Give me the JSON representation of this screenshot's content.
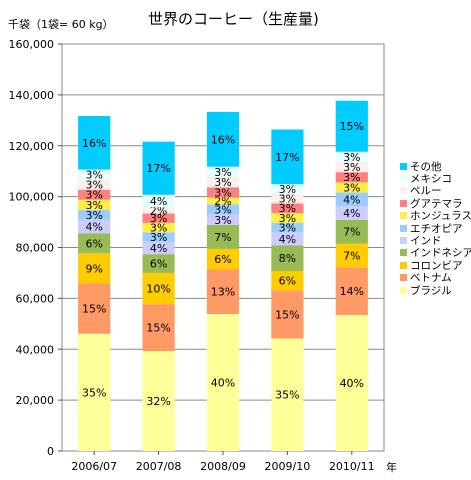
{
  "chart_data": {
    "type": "bar",
    "stacked": true,
    "title": "世界のコーヒー（生産量)",
    "unit_label": "千袋（1袋= 60 kg）",
    "x_unit": "年",
    "categories": [
      "2006/07",
      "2007/08",
      "2008/09",
      "2009/10",
      "2010/11"
    ],
    "totals": [
      131700,
      121600,
      133300,
      126400,
      137700
    ],
    "ylim": [
      0,
      160000
    ],
    "yticks": [
      0,
      20000,
      40000,
      60000,
      80000,
      100000,
      120000,
      140000,
      160000
    ],
    "ytick_labels": [
      "0",
      "20,000",
      "40,000",
      "60,000",
      "80,000",
      "100,000",
      "120,000",
      "140,000",
      "160,000"
    ],
    "grid": true,
    "legend_position": "right",
    "series": [
      {
        "name": "ブラジル",
        "color": "#ffff99",
        "percent": [
          35,
          32,
          40,
          35,
          40
        ],
        "labels": [
          "35%",
          "32%",
          "40%",
          "35%",
          "40%"
        ]
      },
      {
        "name": "ベトナム",
        "color": "#ff9966",
        "percent": [
          15,
          15,
          13,
          15,
          14
        ],
        "labels": [
          "15%",
          "15%",
          "13%",
          "15%",
          "14%"
        ]
      },
      {
        "name": "コロンビア",
        "color": "#ffcc00",
        "percent": [
          9,
          10,
          6,
          6,
          7
        ],
        "labels": [
          "9%",
          "10%",
          "6%",
          "6%",
          "7%"
        ]
      },
      {
        "name": "インドネシア",
        "color": "#99bb55",
        "percent": [
          6,
          6,
          7,
          8,
          7
        ],
        "labels": [
          "6%",
          "6%",
          "7%",
          "8%",
          "7%"
        ]
      },
      {
        "name": "インド",
        "color": "#ccccff",
        "percent": [
          4,
          4,
          3,
          4,
          4
        ],
        "labels": [
          "4%",
          "4%",
          "3%",
          "4%",
          "4%"
        ]
      },
      {
        "name": "エチオピア",
        "color": "#99ccff",
        "percent": [
          3,
          3,
          3,
          3,
          4
        ],
        "labels": [
          "3%",
          "3%",
          "3%",
          "3%",
          "4%"
        ]
      },
      {
        "name": "ホンジュラス",
        "color": "#ffee44",
        "percent": [
          3,
          3,
          2,
          3,
          3
        ],
        "labels": [
          "3%",
          "3%",
          "2%",
          "3%",
          "3%"
        ]
      },
      {
        "name": "グアテマラ",
        "color": "#ff8080",
        "percent": [
          3,
          3,
          3,
          3,
          3
        ],
        "labels": [
          "3%",
          "3%",
          "3%",
          "3%",
          "3%"
        ]
      },
      {
        "name": "ペルー",
        "color": "#ffeeee",
        "percent": [
          3,
          2,
          3,
          3,
          3
        ],
        "labels": [
          "3%",
          "2%",
          "3%",
          "3%",
          "3%"
        ]
      },
      {
        "name": "メキシコ",
        "color": "#e6ffff",
        "percent": [
          3,
          4,
          3,
          3,
          3
        ],
        "labels": [
          "3%",
          "4%",
          "3%",
          "3%",
          "3%"
        ]
      },
      {
        "name": "その他",
        "color": "#00ccff",
        "percent": [
          16,
          17,
          16,
          17,
          15
        ],
        "labels": [
          "16%",
          "17%",
          "16%",
          "17%",
          "15%"
        ]
      }
    ]
  }
}
